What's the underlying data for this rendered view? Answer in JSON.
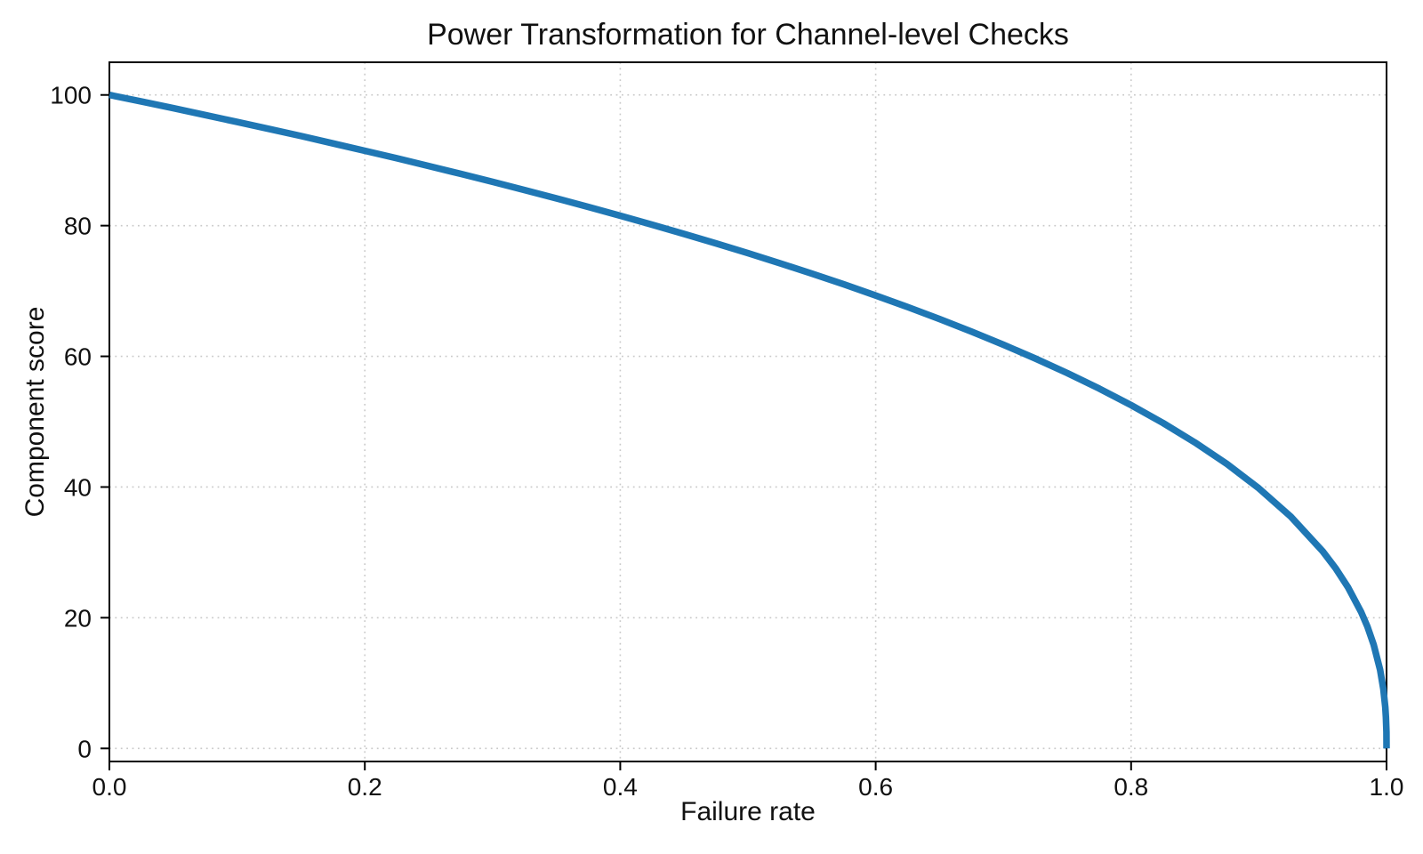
{
  "figure": {
    "background": "#ffffff",
    "text_color": "#111111",
    "spine_color": "#000000",
    "grid_color": "#c9c9c9"
  },
  "chart_data": {
    "type": "line",
    "title": "Power Transformation for Channel-level Checks",
    "xlabel": "Failure rate",
    "ylabel": "Component score",
    "xlim": [
      0,
      1
    ],
    "ylim": [
      -2,
      105
    ],
    "x_ticks": [
      "0.0",
      "0.2",
      "0.4",
      "0.6",
      "0.8",
      "1.0"
    ],
    "x_tick_values": [
      0,
      0.2,
      0.4,
      0.6,
      0.8,
      1.0
    ],
    "y_ticks": [
      "0",
      "20",
      "40",
      "60",
      "80",
      "100"
    ],
    "y_tick_values": [
      0,
      20,
      40,
      60,
      80,
      100
    ],
    "grid": {
      "visible": true,
      "style": "dotted"
    },
    "legend": {
      "visible": false
    },
    "series": [
      {
        "name": "power-transform-curve",
        "color": "#1f77b4",
        "line_width": 7.5,
        "relation": "score = 100 * (1 - failure_rate)^0.4",
        "x": [
          0,
          0.025,
          0.05,
          0.075,
          0.1,
          0.125,
          0.15,
          0.175,
          0.2,
          0.225,
          0.25,
          0.275,
          0.3,
          0.325,
          0.35,
          0.375,
          0.4,
          0.425,
          0.45,
          0.475,
          0.5,
          0.525,
          0.55,
          0.575,
          0.6,
          0.625,
          0.65,
          0.675,
          0.7,
          0.725,
          0.75,
          0.775,
          0.8,
          0.825,
          0.85,
          0.875,
          0.9,
          0.925,
          0.95,
          0.96,
          0.97,
          0.98,
          0.985,
          0.99,
          0.995,
          0.9975,
          0.999,
          0.9995,
          0.9999,
          1.0
        ],
        "y": [
          100,
          98.99,
          97.97,
          96.93,
          95.87,
          94.8,
          93.71,
          92.59,
          91.46,
          90.31,
          89.13,
          87.93,
          86.7,
          85.45,
          84.17,
          82.86,
          81.52,
          80.14,
          78.73,
          77.28,
          75.79,
          74.25,
          72.66,
          71.02,
          69.31,
          67.55,
          65.71,
          63.79,
          61.78,
          59.67,
          57.43,
          55.07,
          52.53,
          49.8,
          46.82,
          43.53,
          39.81,
          35.48,
          30.17,
          27.6,
          24.6,
          20.91,
          18.64,
          15.85,
          12.01,
          9.1,
          6.31,
          4.78,
          2.51,
          0
        ]
      }
    ]
  }
}
